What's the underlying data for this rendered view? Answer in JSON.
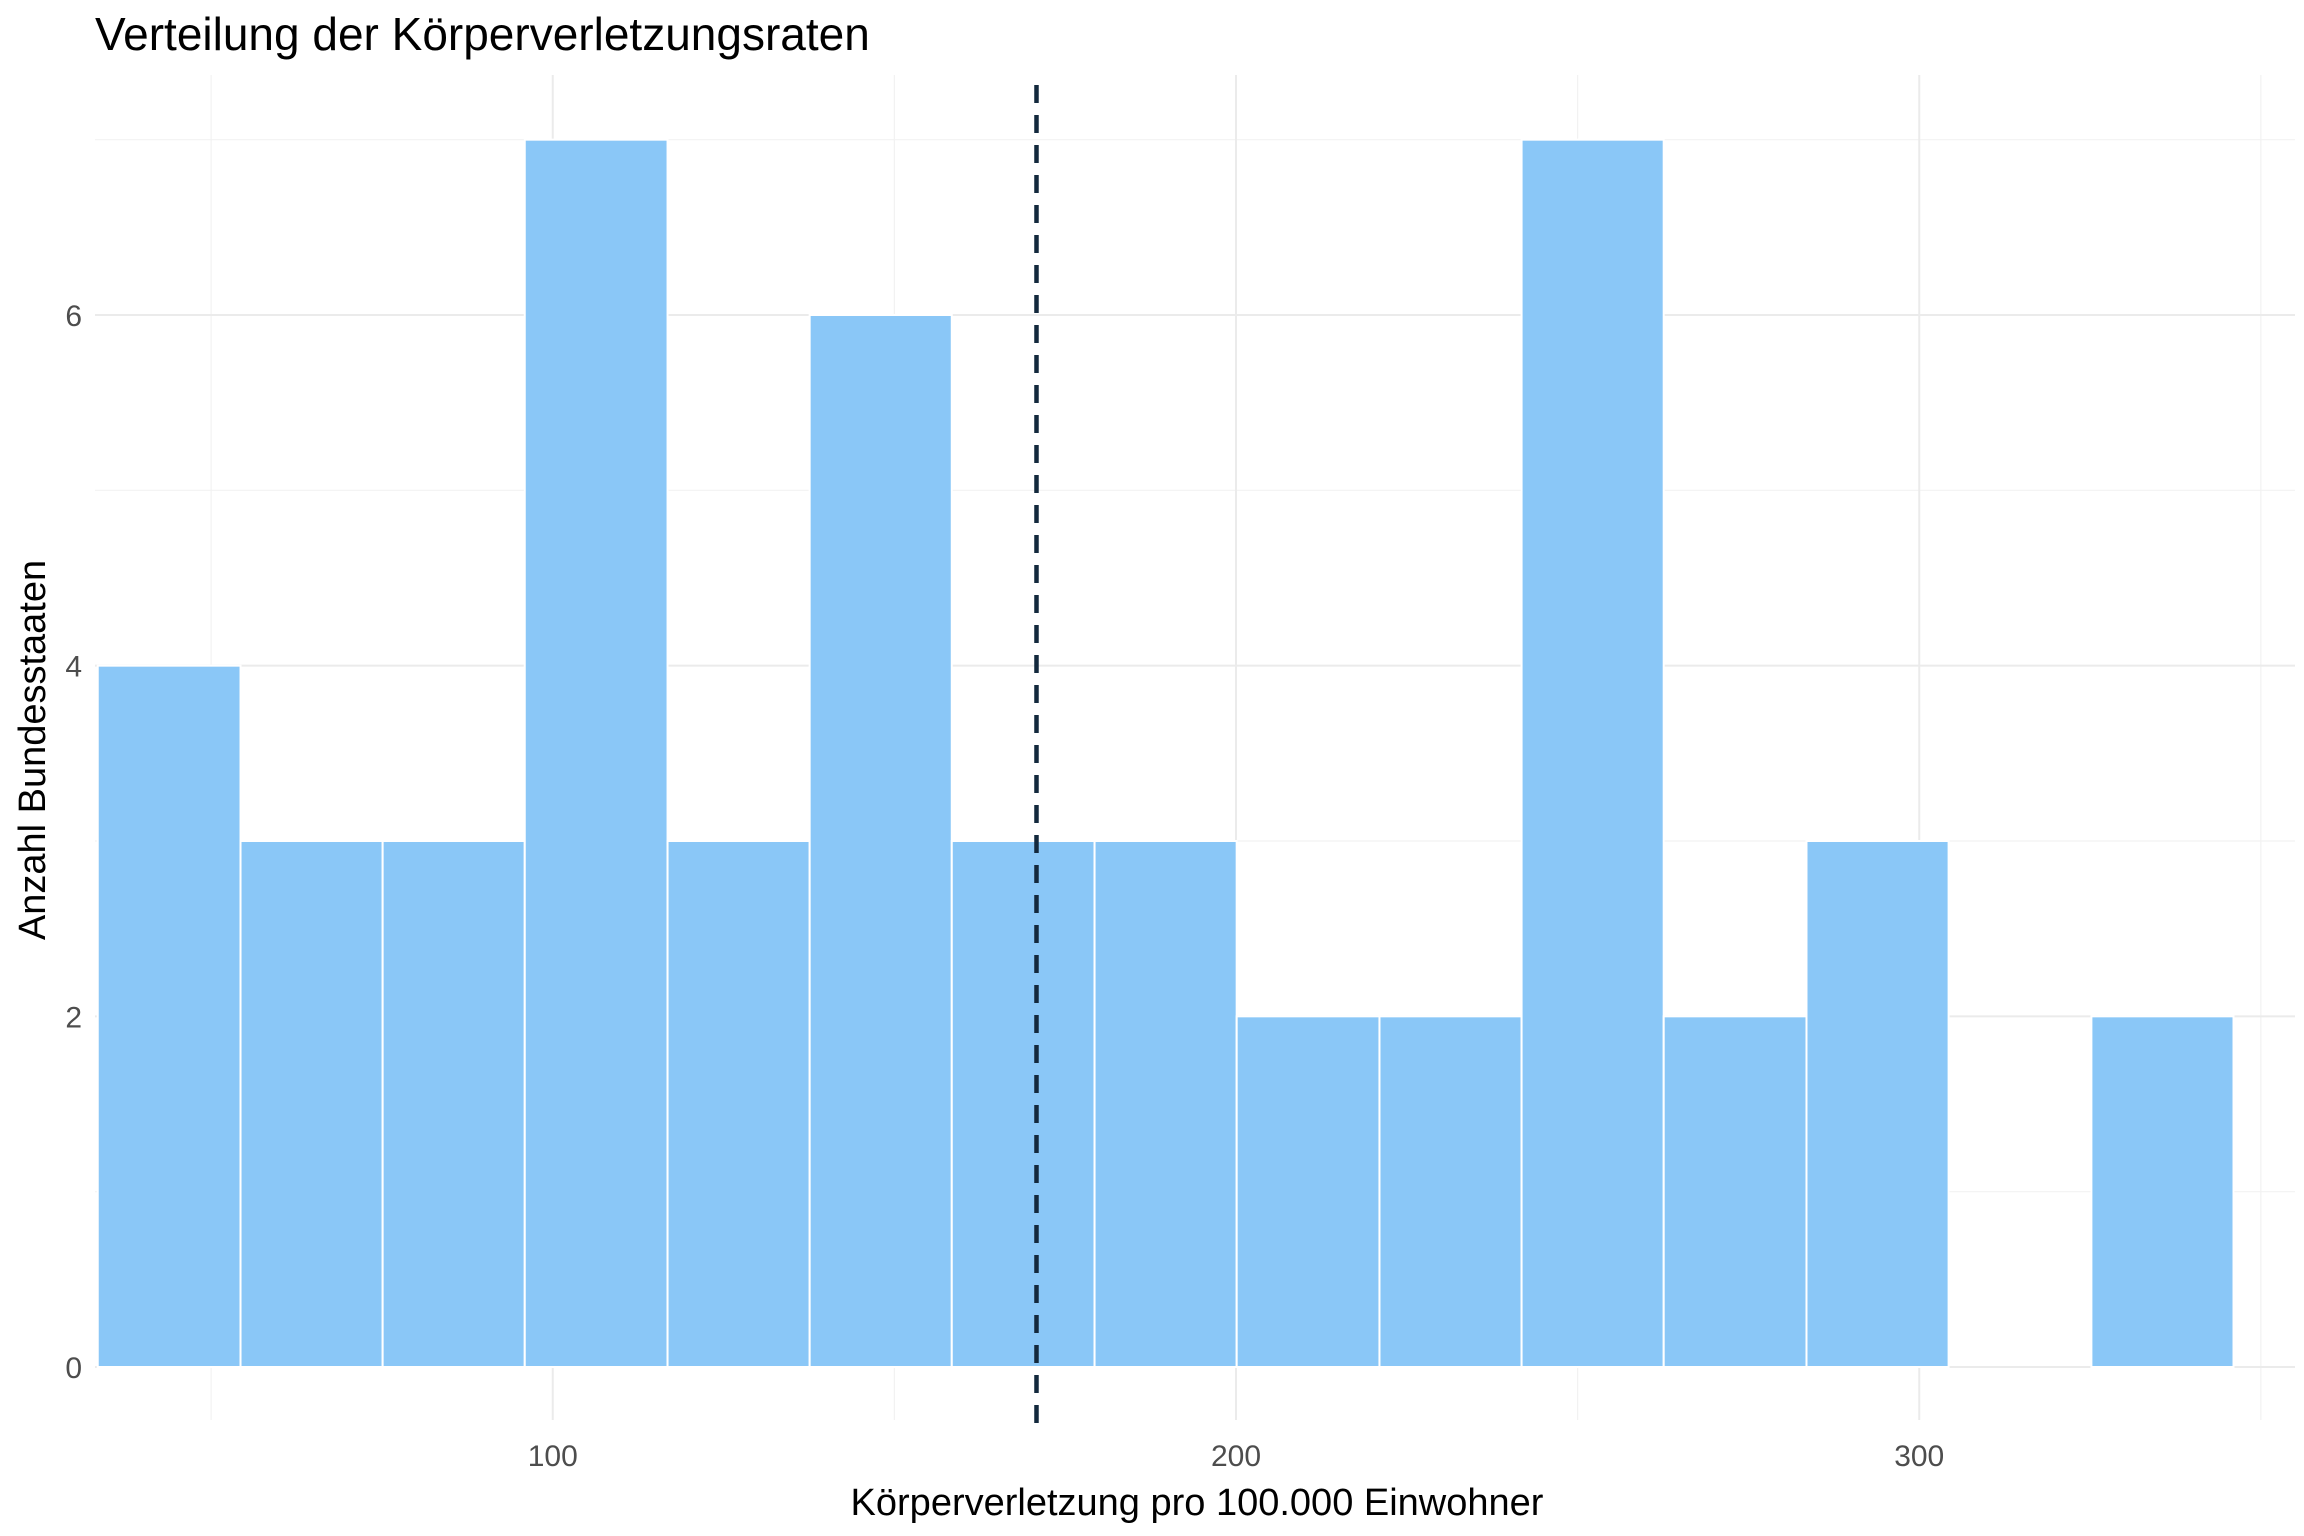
{
  "chart_data": {
    "type": "histogram",
    "title": "Verteilung der Körperverletzungsraten",
    "xlabel": "Körperverletzung pro 100.000 Einwohner",
    "ylabel": "Anzahl Bundesstaaten",
    "xlim": [
      33,
      355
    ],
    "ylim": [
      0,
      7.3
    ],
    "x_ticks": [
      100,
      200,
      300
    ],
    "x_tick_labels": [
      "100",
      "200",
      "300"
    ],
    "y_ticks": [
      0,
      2,
      4,
      6
    ],
    "y_tick_labels": [
      "0",
      "2",
      "4",
      "6"
    ],
    "bins": [
      {
        "start": 33.4,
        "end": 54.3,
        "count": 4
      },
      {
        "start": 54.3,
        "end": 75.1,
        "count": 3
      },
      {
        "start": 75.1,
        "end": 95.9,
        "count": 3
      },
      {
        "start": 95.9,
        "end": 116.8,
        "count": 7
      },
      {
        "start": 116.8,
        "end": 137.6,
        "count": 3
      },
      {
        "start": 137.6,
        "end": 158.4,
        "count": 6
      },
      {
        "start": 158.4,
        "end": 179.3,
        "count": 3
      },
      {
        "start": 179.3,
        "end": 200.1,
        "count": 3
      },
      {
        "start": 200.1,
        "end": 221.0,
        "count": 2
      },
      {
        "start": 221.0,
        "end": 241.8,
        "count": 2
      },
      {
        "start": 241.8,
        "end": 262.6,
        "count": 7
      },
      {
        "start": 262.6,
        "end": 283.5,
        "count": 2
      },
      {
        "start": 283.5,
        "end": 304.3,
        "count": 3
      },
      {
        "start": 304.3,
        "end": 325.2,
        "count": 0
      },
      {
        "start": 325.2,
        "end": 346.0,
        "count": 2
      }
    ],
    "reference_line": {
      "x": 170.8,
      "style": "dashed"
    },
    "grid": true,
    "legend": "none",
    "colors": {
      "bar": "#8AC7F7",
      "reference_line": "#13293D"
    }
  }
}
